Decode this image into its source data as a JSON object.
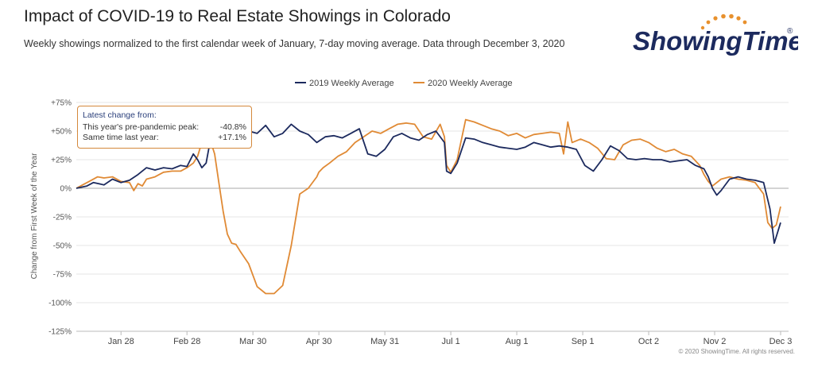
{
  "header": {
    "title": "Impact of COVID-19 to Real Estate Showings in Colorado",
    "subtitle": "Weekly showings normalized to the first calendar week of January, 7-day moving average. Data through December 3, 2020"
  },
  "logo": {
    "text": "ShowingTime",
    "mark": "®",
    "color": "#1c2a5e",
    "accent": "#e8912d"
  },
  "tooltip": {
    "title": "Latest change from:",
    "rows": [
      {
        "label": "This year's pre-pandemic peak:",
        "value": "-40.8%"
      },
      {
        "label": "Same time last year:",
        "value": "+17.1%"
      }
    ]
  },
  "credit": "© 2020 ShowingTime. All rights reserved.",
  "chart_data": {
    "type": "line",
    "ylabel": "Change from First Week of the Year",
    "ylim": [
      -125,
      75
    ],
    "yticks": [
      75,
      50,
      25,
      0,
      -25,
      -50,
      -75,
      -100,
      -125
    ],
    "ytick_labels": [
      "+75%",
      "+50%",
      "+25%",
      "0%",
      "-25%",
      "-50%",
      "-75%",
      "-100%",
      "-125%"
    ],
    "xlim": [
      7,
      338
    ],
    "xticks": [
      28,
      59,
      90,
      121,
      152,
      183,
      214,
      245,
      276,
      307,
      338
    ],
    "xtick_labels": [
      "Jan 28",
      "Feb 28",
      "Mar 30",
      "Apr 30",
      "May 31",
      "Jul 1",
      "Aug 1",
      "Sep 1",
      "Oct 2",
      "Nov 2",
      "Dec 3"
    ],
    "legend_position": "top-center",
    "grid": true,
    "series": [
      {
        "name": "2019 Weekly Average",
        "color": "#1c2a5e",
        "x": [
          7,
          12,
          15,
          20,
          24,
          28,
          32,
          36,
          40,
          44,
          48,
          52,
          56,
          59,
          62,
          64,
          66,
          68,
          70,
          72,
          74,
          76,
          78,
          80,
          84,
          88,
          92,
          96,
          100,
          104,
          108,
          112,
          116,
          120,
          124,
          128,
          132,
          136,
          140,
          144,
          148,
          152,
          156,
          160,
          164,
          168,
          172,
          176,
          180,
          181,
          183,
          186,
          190,
          194,
          198,
          202,
          206,
          210,
          214,
          218,
          222,
          226,
          230,
          234,
          238,
          242,
          246,
          250,
          254,
          258,
          262,
          266,
          270,
          274,
          278,
          282,
          286,
          290,
          294,
          298,
          302,
          304,
          306,
          308,
          310,
          314,
          318,
          322,
          326,
          330,
          333,
          335,
          338
        ],
        "y": [
          0,
          2,
          5,
          3,
          8,
          5,
          7,
          12,
          18,
          16,
          18,
          17,
          20,
          19,
          30,
          25,
          18,
          22,
          42,
          45,
          38,
          40,
          45,
          42,
          47,
          50,
          48,
          55,
          45,
          48,
          56,
          50,
          47,
          40,
          45,
          46,
          44,
          48,
          52,
          30,
          28,
          34,
          45,
          48,
          44,
          42,
          47,
          50,
          40,
          15,
          13,
          22,
          44,
          43,
          40,
          38,
          36,
          35,
          34,
          36,
          40,
          38,
          36,
          37,
          36,
          34,
          20,
          15,
          25,
          37,
          33,
          26,
          25,
          26,
          25,
          25,
          23,
          24,
          25,
          20,
          17,
          10,
          0,
          -6,
          -2,
          8,
          10,
          8,
          7,
          5,
          -18,
          -48,
          -30
        ]
      },
      {
        "name": "2020 Weekly Average",
        "color": "#e08a35",
        "x": [
          7,
          10,
          13,
          17,
          20,
          24,
          28,
          32,
          34,
          36,
          38,
          40,
          44,
          48,
          52,
          56,
          59,
          62,
          64,
          66,
          68,
          70,
          72,
          74,
          76,
          78,
          80,
          82,
          84,
          88,
          92,
          96,
          100,
          104,
          108,
          112,
          116,
          120,
          121,
          123,
          126,
          130,
          134,
          138,
          142,
          146,
          150,
          154,
          158,
          162,
          166,
          170,
          174,
          178,
          180,
          181,
          183,
          186,
          190,
          194,
          198,
          202,
          206,
          210,
          214,
          218,
          222,
          226,
          230,
          234,
          236,
          238,
          240,
          244,
          248,
          252,
          256,
          260,
          264,
          268,
          272,
          276,
          280,
          284,
          288,
          292,
          296,
          300,
          302,
          304,
          306,
          310,
          314,
          318,
          322,
          326,
          330,
          332,
          334,
          336,
          338
        ],
        "y": [
          0,
          3,
          6,
          10,
          9,
          10,
          6,
          5,
          -2,
          4,
          2,
          8,
          10,
          14,
          15,
          15,
          18,
          22,
          28,
          40,
          45,
          42,
          30,
          5,
          -20,
          -40,
          -48,
          -49,
          -55,
          -66,
          -86,
          -92,
          -92,
          -85,
          -50,
          -5,
          0,
          10,
          14,
          18,
          22,
          28,
          32,
          40,
          45,
          50,
          48,
          52,
          56,
          57,
          56,
          45,
          43,
          56,
          45,
          20,
          14,
          25,
          60,
          58,
          55,
          52,
          50,
          46,
          48,
          44,
          47,
          48,
          49,
          48,
          30,
          58,
          40,
          43,
          40,
          35,
          26,
          25,
          38,
          42,
          43,
          40,
          35,
          32,
          34,
          30,
          28,
          20,
          12,
          6,
          2,
          8,
          10,
          8,
          7,
          5,
          -5,
          -30,
          -35,
          -32,
          -16
        ]
      }
    ]
  }
}
